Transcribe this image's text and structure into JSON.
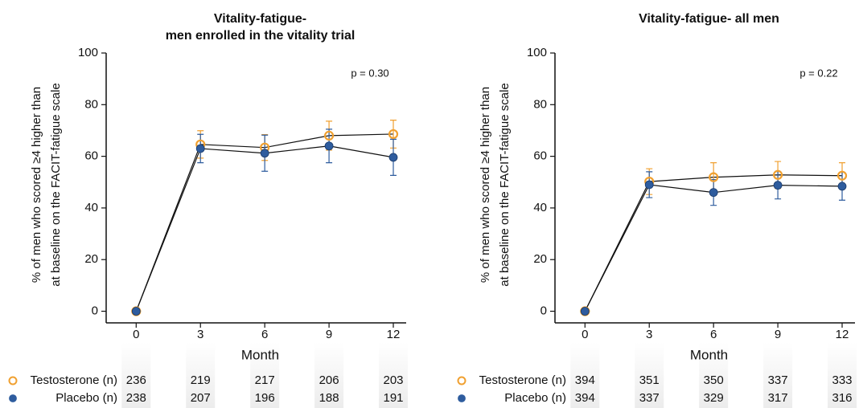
{
  "chart_data": [
    {
      "type": "line",
      "title": [
        "Vitality-fatigue-",
        "men enrolled in the vitality trial"
      ],
      "ylabel": [
        "% of men who scored ≥4 higher than",
        "at baseline on the FACIT-fatigue scale"
      ],
      "xlabel": "Month",
      "annotation": "p = 0.30",
      "x": [
        0,
        3,
        6,
        9,
        12
      ],
      "xlim": [
        -1.4,
        12.6
      ],
      "xticks": [
        0,
        3,
        6,
        9,
        12
      ],
      "ylim": [
        -4.5,
        100
      ],
      "yticks": [
        0,
        20,
        40,
        60,
        80,
        100
      ],
      "series": [
        {
          "name": "Testosterone (n)",
          "color": "#f0a030",
          "marker": "open",
          "values": [
            0,
            64.6,
            63.4,
            68,
            68.6
          ],
          "errors": [
            0,
            5.3,
            5,
            5.6,
            5.4
          ],
          "n": [
            236,
            219,
            217,
            206,
            203
          ]
        },
        {
          "name": "Placebo (n)",
          "color": "#2e5c9e",
          "marker": "filled",
          "values": [
            0,
            63,
            61.2,
            64,
            59.6
          ],
          "errors": [
            0,
            5.5,
            7,
            6.5,
            7
          ],
          "n": [
            238,
            207,
            196,
            188,
            191
          ]
        }
      ]
    },
    {
      "type": "line",
      "title": [
        "Vitality-fatigue- all men"
      ],
      "ylabel": [
        "% of men who scored ≥4 higher than",
        "at baseline on the FACIT-fatigue scale"
      ],
      "xlabel": "Month",
      "annotation": "p = 0.22",
      "x": [
        0,
        3,
        6,
        9,
        12
      ],
      "xlim": [
        -1.4,
        12.6
      ],
      "xticks": [
        0,
        3,
        6,
        9,
        12
      ],
      "ylim": [
        -4.5,
        100
      ],
      "yticks": [
        0,
        20,
        40,
        60,
        80,
        100
      ],
      "series": [
        {
          "name": "Testosterone (n)",
          "color": "#f0a030",
          "marker": "open",
          "values": [
            0,
            50.2,
            51.9,
            52.8,
            52.5
          ],
          "errors": [
            0,
            5,
            5.6,
            5.2,
            5
          ],
          "n": [
            394,
            351,
            350,
            337,
            333
          ]
        },
        {
          "name": "Placebo (n)",
          "color": "#2e5c9e",
          "marker": "filled",
          "values": [
            0,
            49,
            46,
            48.8,
            48.4
          ],
          "errors": [
            0,
            5,
            5,
            5.3,
            5.4
          ],
          "n": [
            394,
            337,
            329,
            317,
            316
          ]
        }
      ]
    }
  ]
}
